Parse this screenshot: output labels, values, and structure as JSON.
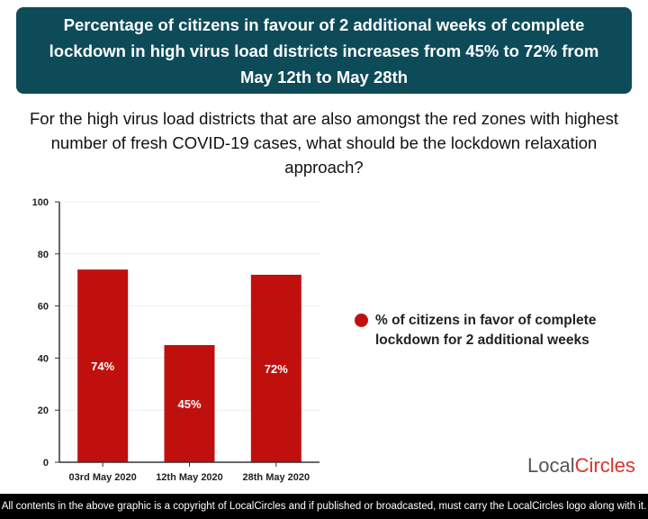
{
  "header": {
    "title": "Percentage of citizens in favour of 2 additional weeks of complete lockdown in high virus load districts increases from 45% to 72% from May 12th to May 28th"
  },
  "question": "For the high virus load districts that are also amongst the red zones with highest number of fresh COVID-19 cases, what should be the lockdown relaxation approach?",
  "chart_data": {
    "type": "bar",
    "categories": [
      "03rd May 2020",
      "12th May 2020",
      "28th May 2020"
    ],
    "series": [
      {
        "name": "% of citizens in favor of complete lockdown for 2 additional weeks",
        "values": [
          74,
          45,
          72
        ],
        "labels": [
          "74%",
          "45%",
          "72%"
        ],
        "color": "#c0100e"
      }
    ],
    "ylim": [
      0,
      100
    ],
    "yticks": [
      "0",
      "20",
      "40",
      "60",
      "80",
      "100"
    ],
    "grid": true,
    "legend": "right"
  },
  "logo": {
    "text_a": "Local",
    "text_b": "Circles"
  },
  "footer": "All contents in the above graphic is a copyright of LocalCircles and if published or broadcasted, must carry the LocalCircles logo along with it."
}
